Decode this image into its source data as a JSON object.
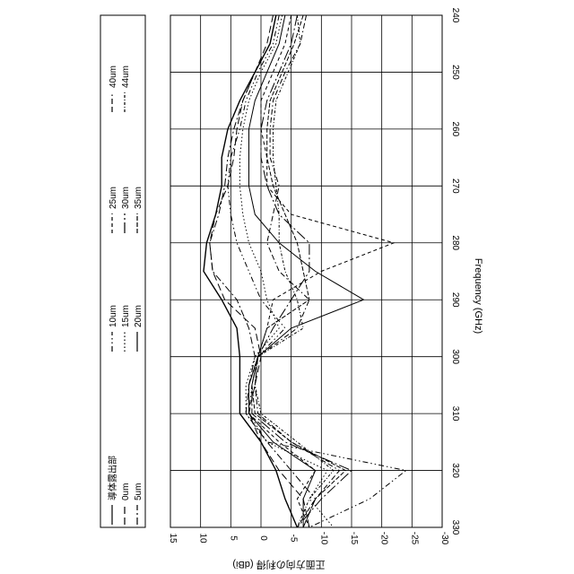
{
  "chart_data": {
    "type": "line",
    "orientation": "rotated-90-clockwise",
    "xlabel": "Frequency (GHz)",
    "ylabel": "正面方向の利得 (dBi)",
    "xlim": [
      240,
      330
    ],
    "ylim": [
      -30,
      15
    ],
    "xticks": [
      "240",
      "250",
      "260",
      "270",
      "280",
      "290",
      "300",
      "310",
      "320",
      "330"
    ],
    "yticks": [
      "15",
      "10",
      "5",
      "0",
      "-5",
      "-10",
      "-15",
      "-20",
      "-25",
      "-30"
    ],
    "grid": true,
    "legend": {
      "placement": "left-boxed",
      "title": "",
      "entries": [
        {
          "label": "導体露出部",
          "dash": ""
        },
        {
          "label": "0um",
          "dash": "8,4"
        },
        {
          "label": "5um",
          "dash": "8,3,2,3"
        },
        {
          "label": "10um",
          "dash": "6,3,1.5,3,1.5,3"
        },
        {
          "label": "15um",
          "dash": "1.5,2.5"
        },
        {
          "label": "20um",
          "dash": ""
        },
        {
          "label": "25um",
          "dash": "4,3"
        },
        {
          "label": "30um",
          "dash": "12,3,2,3"
        },
        {
          "label": "35um",
          "dash": "5,2"
        },
        {
          "label": "40um",
          "dash": "6,3,6,3,1.5,3"
        },
        {
          "label": "44um",
          "dash": "3,2,1,2"
        }
      ]
    },
    "series": [
      {
        "name": "導体露出部",
        "x": [
          240,
          245,
          250,
          255,
          260,
          265,
          270,
          275,
          280,
          285,
          290,
          295,
          300,
          305,
          310,
          315,
          320,
          325,
          330
        ],
        "values": [
          -2.5,
          -1.5,
          1,
          3.5,
          5.5,
          6.5,
          6.5,
          7.5,
          9,
          9.5,
          6.5,
          4,
          3.5,
          3.5,
          3.5,
          0,
          -2.5,
          -4,
          -6
        ]
      },
      {
        "name": "0um",
        "x": [
          240,
          245,
          250,
          255,
          260,
          265,
          270,
          275,
          280,
          285,
          290,
          295,
          300,
          305,
          310,
          315,
          320,
          325,
          330
        ],
        "values": [
          -2,
          -1,
          1,
          3,
          4,
          4.5,
          5.5,
          7.5,
          8.5,
          8,
          6,
          1,
          0,
          1,
          2,
          0,
          -3,
          -7,
          -8
        ]
      },
      {
        "name": "5um",
        "x": [
          240,
          245,
          250,
          255,
          260,
          265,
          270,
          275,
          280,
          285,
          290,
          295,
          300,
          305,
          310,
          315,
          320,
          325,
          330
        ],
        "values": [
          -2.5,
          -1.5,
          1,
          3,
          4.5,
          5.5,
          6,
          7,
          8.5,
          8,
          4,
          2,
          1,
          2,
          2.5,
          -1,
          -5,
          -9,
          -7
        ]
      },
      {
        "name": "10um",
        "x": [
          240,
          245,
          250,
          255,
          260,
          265,
          270,
          275,
          280,
          285,
          290,
          295,
          300,
          305,
          310,
          315,
          320,
          325,
          330
        ],
        "values": [
          -3,
          -2,
          0.5,
          2.5,
          3.5,
          5,
          5.5,
          5,
          4,
          2,
          0,
          -4,
          0.5,
          1.5,
          2,
          -1,
          -24,
          -18,
          -8
        ]
      },
      {
        "name": "15um",
        "x": [
          240,
          245,
          250,
          255,
          260,
          265,
          270,
          275,
          280,
          285,
          290,
          295,
          300,
          305,
          310,
          315,
          320,
          325,
          330
        ],
        "values": [
          -3.5,
          -2.5,
          0,
          2,
          3,
          3.5,
          3.5,
          3,
          2,
          0,
          -1,
          -3,
          1,
          2.5,
          2.5,
          -1,
          -11,
          -8,
          -12
        ]
      },
      {
        "name": "20um",
        "x": [
          240,
          245,
          250,
          255,
          260,
          265,
          270,
          275,
          280,
          285,
          290,
          295,
          300,
          305,
          310,
          315,
          320,
          325,
          330
        ],
        "values": [
          -4,
          -3,
          -1,
          1,
          2,
          2,
          2,
          1,
          -3,
          -9,
          -17,
          -5,
          0.5,
          2,
          2,
          -2,
          -9,
          -7,
          -7
        ]
      },
      {
        "name": "25um",
        "x": [
          240,
          245,
          250,
          255,
          260,
          265,
          270,
          275,
          280,
          285,
          290,
          295,
          300,
          305,
          310,
          315,
          320,
          325,
          330
        ],
        "values": [
          -5,
          -4,
          -2,
          0,
          0,
          -1,
          -1,
          -5,
          -22,
          -10,
          -2,
          -1,
          0.5,
          2,
          2,
          -3,
          -9,
          -6,
          -8
        ]
      },
      {
        "name": "30um",
        "x": [
          240,
          245,
          250,
          255,
          260,
          265,
          270,
          275,
          280,
          285,
          290,
          295,
          300,
          305,
          310,
          315,
          320,
          325,
          330
        ],
        "values": [
          -6,
          -5,
          -3,
          -1,
          0,
          0,
          -1,
          -3,
          -8,
          -8,
          -5,
          -2,
          0.5,
          1.5,
          1.5,
          -4,
          -15,
          -10,
          -6
        ]
      },
      {
        "name": "35um",
        "x": [
          240,
          245,
          250,
          255,
          260,
          265,
          270,
          275,
          280,
          285,
          290,
          295,
          300,
          305,
          310,
          315,
          320,
          325,
          330
        ],
        "values": [
          -7,
          -5.5,
          -3.5,
          -1.5,
          -1,
          -1,
          -2,
          -4,
          -6,
          -7,
          -8,
          -1,
          0.5,
          1.5,
          1,
          -5,
          -14,
          -9,
          -7
        ]
      },
      {
        "name": "40um",
        "x": [
          240,
          245,
          250,
          255,
          260,
          265,
          270,
          275,
          280,
          285,
          290,
          295,
          300,
          305,
          310,
          315,
          320,
          325,
          330
        ],
        "values": [
          -7.5,
          -6.5,
          -4,
          -2,
          -1.5,
          -1.5,
          -3,
          -2,
          -1,
          -3,
          -8,
          -6,
          0.5,
          1,
          0.5,
          -5,
          -13,
          -9,
          -6
        ]
      },
      {
        "name": "44um",
        "x": [
          240,
          245,
          250,
          255,
          260,
          265,
          270,
          275,
          280,
          285,
          290,
          295,
          300,
          305,
          310,
          315,
          320,
          325,
          330
        ],
        "values": [
          -6,
          -6.5,
          -4.5,
          -2.5,
          -2,
          -2,
          -2.5,
          -3,
          -3,
          -4,
          -6,
          -7,
          0.5,
          1,
          0,
          -6,
          -12,
          -8,
          -6
        ]
      }
    ]
  }
}
